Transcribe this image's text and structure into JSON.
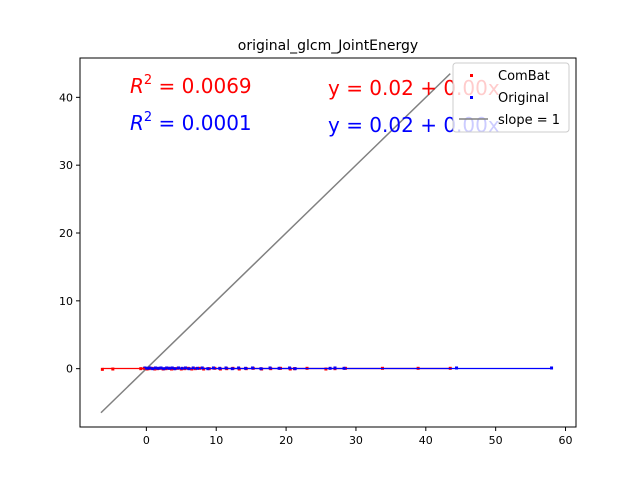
{
  "chart_data": {
    "type": "scatter",
    "title": "original_glcm_JointEnergy",
    "xlabel": "",
    "ylabel": "",
    "xlim": [
      -9.5,
      61.5
    ],
    "ylim": [
      -8.6,
      45.8
    ],
    "x_ticks": [
      "0",
      "10",
      "20",
      "30",
      "40",
      "50",
      "60"
    ],
    "y_ticks": [
      "0",
      "10",
      "20",
      "30",
      "40"
    ],
    "grid": false,
    "legend_position": "top-right",
    "colors": {
      "combat": "#ff0000",
      "original": "#0000ff",
      "slope": "#808080",
      "axes": "#000000"
    },
    "annotations": {
      "r2_combat": "0.0069",
      "eq_combat": "y = 0.02 + 0.00x",
      "r2_original": "0.0001",
      "eq_original": "y = 0.02 + 0.00x"
    },
    "legend": [
      "ComBat",
      "Original",
      "slope = 1"
    ],
    "identity_line": {
      "x": [
        -6.5,
        43.5
      ],
      "y": [
        -6.5,
        43.5
      ]
    },
    "series": [
      {
        "name": "ComBat",
        "kind": "scatter",
        "x": [
          -6.3,
          -4.8,
          -0.8,
          -0.3,
          0.1,
          0.4,
          0.8,
          1.2,
          1.6,
          2.0,
          2.4,
          2.8,
          3.2,
          3.6,
          4.0,
          4.5,
          5.0,
          5.5,
          6.0,
          6.5,
          7.0,
          7.6,
          8.2,
          9.0,
          9.8,
          10.6,
          11.5,
          12.4,
          13.3,
          14.3,
          15.3,
          16.5,
          17.8,
          19.2,
          20.6,
          21.2,
          23.0,
          25.7,
          27.0,
          28.5,
          33.8,
          38.9,
          43.5
        ],
        "y": [
          -0.1,
          -0.05,
          0.0,
          0.05,
          -0.05,
          0.0,
          0.05,
          -0.05,
          0.0,
          0.05,
          -0.05,
          0.0,
          0.05,
          -0.05,
          0.0,
          0.05,
          -0.05,
          0.0,
          0.05,
          -0.05,
          0.0,
          0.05,
          -0.05,
          0.0,
          0.05,
          -0.05,
          0.0,
          0.05,
          -0.05,
          0.0,
          0.05,
          -0.05,
          0.0,
          0.05,
          -0.05,
          0.0,
          0.05,
          -0.05,
          0.0,
          0.05,
          0.05,
          0.05,
          0.05
        ]
      },
      {
        "name": "Original",
        "kind": "scatter",
        "x": [
          -0.2,
          0.2,
          0.5,
          0.9,
          1.3,
          1.7,
          2.1,
          2.5,
          2.9,
          3.3,
          3.7,
          4.1,
          4.6,
          5.1,
          5.6,
          6.1,
          6.7,
          7.3,
          8.0,
          8.8,
          9.6,
          10.5,
          11.4,
          12.3,
          13.2,
          14.2,
          15.2,
          16.4,
          17.7,
          19.0,
          20.5,
          21.3,
          26.3,
          27.0,
          28.3,
          44.4,
          58.0
        ],
        "y": [
          0.1,
          0.05,
          0.1,
          0.0,
          0.1,
          0.05,
          0.1,
          0.0,
          0.1,
          0.05,
          0.1,
          0.0,
          0.1,
          0.05,
          0.1,
          0.0,
          0.1,
          0.05,
          0.1,
          0.0,
          0.1,
          0.05,
          0.1,
          0.0,
          0.1,
          0.05,
          0.1,
          0.0,
          0.1,
          0.05,
          0.1,
          0.0,
          0.05,
          0.1,
          0.05,
          0.1,
          0.1
        ]
      },
      {
        "name": "ComBat",
        "kind": "fit",
        "x": [
          -6.3,
          43.5
        ],
        "y": [
          0.02,
          0.02
        ]
      },
      {
        "name": "Original",
        "kind": "fit",
        "x": [
          -0.2,
          58.0
        ],
        "y": [
          0.02,
          0.02
        ]
      }
    ]
  }
}
